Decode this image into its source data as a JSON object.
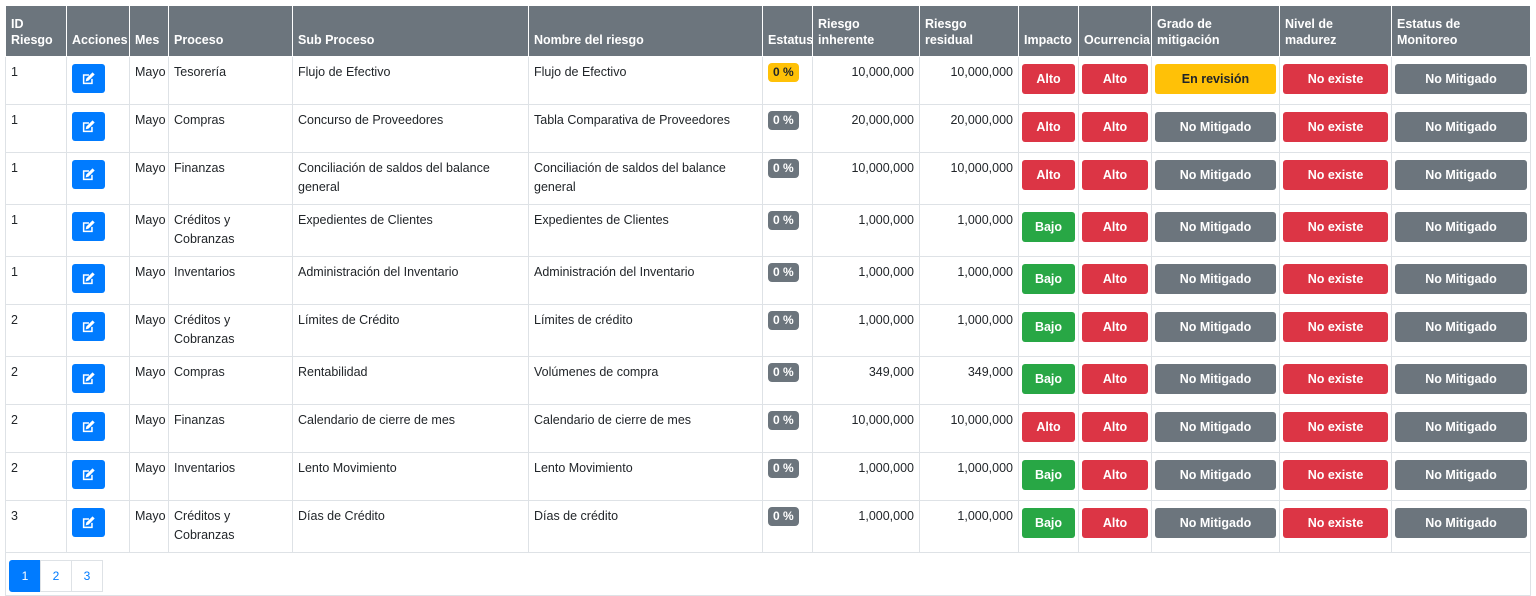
{
  "headers": {
    "id_riesgo": [
      "ID",
      "Riesgo"
    ],
    "acciones": "Acciones",
    "mes": "Mes",
    "proceso": "Proceso",
    "sub_proceso": "Sub Proceso",
    "nombre_riesgo": "Nombre del riesgo",
    "estatus": "Estatus",
    "riesgo_inherente": [
      "Riesgo",
      "inherente"
    ],
    "riesgo_residual": [
      "Riesgo",
      "residual"
    ],
    "impacto": "Impacto",
    "ocurrencia": "Ocurrencia",
    "grado_mitigacion": [
      "Grado de",
      "mitigación"
    ],
    "nivel_madurez": [
      "Nivel de",
      "madurez"
    ],
    "estatus_monitoreo": [
      "Estatus de",
      "Monitoreo"
    ]
  },
  "rows": [
    {
      "id": "1",
      "mes": "Mayo",
      "proceso": "Tesorería",
      "sub_proceso": "Flujo de Efectivo",
      "nombre": "Flujo de Efectivo",
      "estatus": "0 %",
      "inherente": "10,000,000",
      "residual": "10,000,000",
      "impacto": "Alto",
      "ocurrencia": "Alto",
      "grado": "En revisión",
      "madurez": "No existe",
      "monitoreo": "No Mitigado"
    },
    {
      "id": "1",
      "mes": "Mayo",
      "proceso": "Compras",
      "sub_proceso": "Concurso de Proveedores",
      "nombre": "Tabla Comparativa de Proveedores",
      "estatus": "0 %",
      "inherente": "20,000,000",
      "residual": "20,000,000",
      "impacto": "Alto",
      "ocurrencia": "Alto",
      "grado": "No Mitigado",
      "madurez": "No existe",
      "monitoreo": "No Mitigado"
    },
    {
      "id": "1",
      "mes": "Mayo",
      "proceso": "Finanzas",
      "sub_proceso": "Conciliación de saldos del balance general",
      "nombre": "Conciliación de saldos del balance general",
      "estatus": "0 %",
      "inherente": "10,000,000",
      "residual": "10,000,000",
      "impacto": "Alto",
      "ocurrencia": "Alto",
      "grado": "No Mitigado",
      "madurez": "No existe",
      "monitoreo": "No Mitigado"
    },
    {
      "id": "1",
      "mes": "Mayo",
      "proceso": "Créditos y Cobranzas",
      "sub_proceso": "Expedientes de Clientes",
      "nombre": "Expedientes de Clientes",
      "estatus": "0 %",
      "inherente": "1,000,000",
      "residual": "1,000,000",
      "impacto": "Bajo",
      "ocurrencia": "Alto",
      "grado": "No Mitigado",
      "madurez": "No existe",
      "monitoreo": "No Mitigado"
    },
    {
      "id": "1",
      "mes": "Mayo",
      "proceso": "Inventarios",
      "sub_proceso": "Administración del Inventario",
      "nombre": "Administración del Inventario",
      "estatus": "0 %",
      "inherente": "1,000,000",
      "residual": "1,000,000",
      "impacto": "Bajo",
      "ocurrencia": "Alto",
      "grado": "No Mitigado",
      "madurez": "No existe",
      "monitoreo": "No Mitigado"
    },
    {
      "id": "2",
      "mes": "Mayo",
      "proceso": "Créditos y Cobranzas",
      "sub_proceso": "Límites de Crédito",
      "nombre": "Límites de crédito",
      "estatus": "0 %",
      "inherente": "1,000,000",
      "residual": "1,000,000",
      "impacto": "Bajo",
      "ocurrencia": "Alto",
      "grado": "No Mitigado",
      "madurez": "No existe",
      "monitoreo": "No Mitigado"
    },
    {
      "id": "2",
      "mes": "Mayo",
      "proceso": "Compras",
      "sub_proceso": "Rentabilidad",
      "nombre": "Volúmenes de compra",
      "estatus": "0 %",
      "inherente": "349,000",
      "residual": "349,000",
      "impacto": "Bajo",
      "ocurrencia": "Alto",
      "grado": "No Mitigado",
      "madurez": "No existe",
      "monitoreo": "No Mitigado"
    },
    {
      "id": "2",
      "mes": "Mayo",
      "proceso": "Finanzas",
      "sub_proceso": "Calendario de cierre de mes",
      "nombre": "Calendario de cierre de mes",
      "estatus": "0 %",
      "inherente": "10,000,000",
      "residual": "10,000,000",
      "impacto": "Alto",
      "ocurrencia": "Alto",
      "grado": "No Mitigado",
      "madurez": "No existe",
      "monitoreo": "No Mitigado"
    },
    {
      "id": "2",
      "mes": "Mayo",
      "proceso": "Inventarios",
      "sub_proceso": "Lento Movimiento",
      "nombre": "Lento Movimiento",
      "estatus": "0 %",
      "inherente": "1,000,000",
      "residual": "1,000,000",
      "impacto": "Bajo",
      "ocurrencia": "Alto",
      "grado": "No Mitigado",
      "madurez": "No existe",
      "monitoreo": "No Mitigado"
    },
    {
      "id": "3",
      "mes": "Mayo",
      "proceso": "Créditos y Cobranzas",
      "sub_proceso": "Días de Crédito",
      "nombre": "Días de crédito",
      "estatus": "0 %",
      "inherente": "1,000,000",
      "residual": "1,000,000",
      "impacto": "Bajo",
      "ocurrencia": "Alto",
      "grado": "No Mitigado",
      "madurez": "No existe",
      "monitoreo": "No Mitigado"
    }
  ],
  "pagination": {
    "pages": [
      "1",
      "2",
      "3"
    ],
    "current": "1"
  },
  "icons": {
    "edit": "edit-icon"
  },
  "colors": {
    "header": "#6c757d",
    "primary": "#007bff",
    "danger": "#dc3545",
    "success": "#28a745",
    "warning": "#ffc107",
    "secondary": "#6c757d"
  }
}
